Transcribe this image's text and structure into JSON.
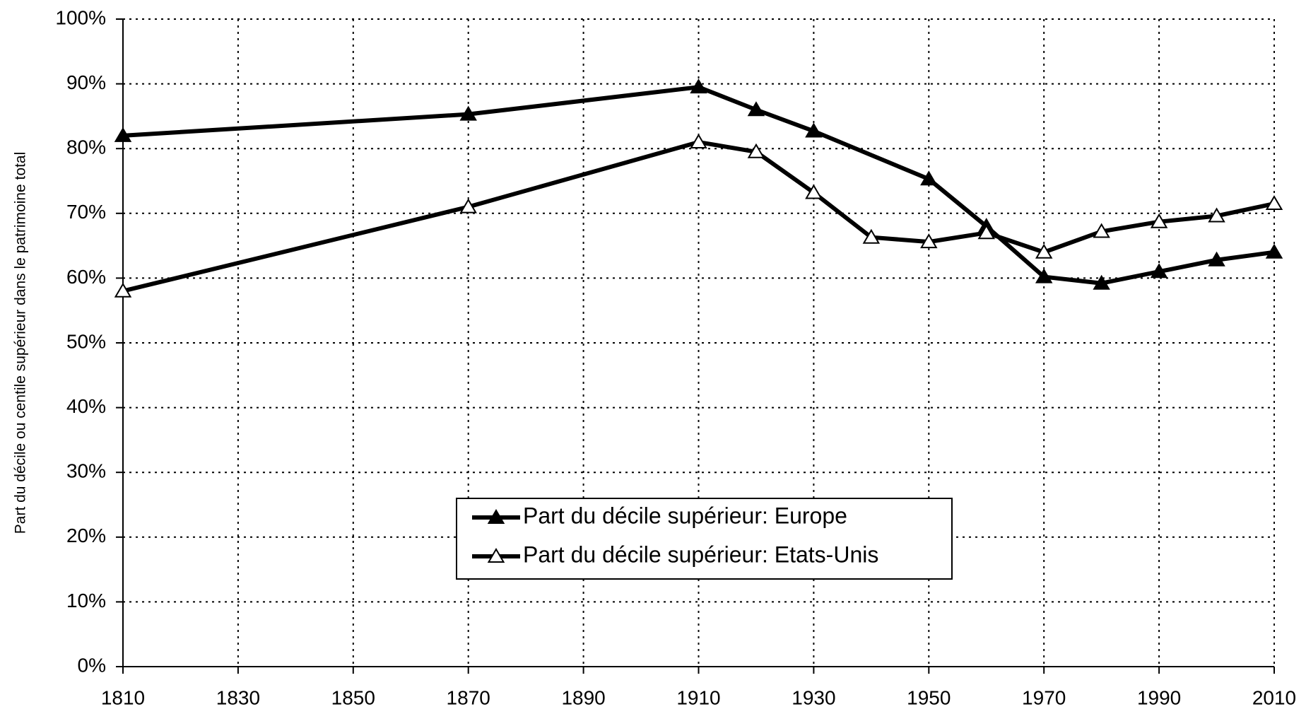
{
  "chart_data": {
    "type": "line",
    "y_label": "Part du décile ou centile supérieur dans le patrimoine total",
    "series": [
      {
        "name": "Part du décile supérieur: Europe",
        "color": "#000000",
        "marker_fill": "#000000",
        "x": [
          1810,
          1870,
          1910,
          1920,
          1930,
          1950,
          1960,
          1970,
          1980,
          1990,
          2000,
          2010
        ],
        "values": [
          82,
          85.3,
          89.5,
          86,
          82.7,
          75.3,
          68,
          60.2,
          59.2,
          61,
          62.8,
          64
        ]
      },
      {
        "name": "Part du décile supérieur: Etats-Unis",
        "color": "#000000",
        "marker_fill": "#ffffff",
        "x": [
          1810,
          1870,
          1910,
          1920,
          1930,
          1940,
          1950,
          1960,
          1970,
          1980,
          1990,
          2000,
          2010
        ],
        "values": [
          58,
          71,
          81,
          79.5,
          73.2,
          66.3,
          65.6,
          67,
          64,
          67.2,
          68.7,
          69.6,
          71.5
        ]
      }
    ],
    "xlim": [
      1810,
      2010
    ],
    "xticks": [
      1810,
      1830,
      1850,
      1870,
      1890,
      1910,
      1930,
      1950,
      1970,
      1990,
      2010
    ],
    "ylim": [
      0,
      100
    ],
    "yticks": [
      {
        "value": 0,
        "label": "0%"
      },
      {
        "value": 10,
        "label": "10%"
      },
      {
        "value": 20,
        "label": "20%"
      },
      {
        "value": 30,
        "label": "30%"
      },
      {
        "value": 40,
        "label": "40%"
      },
      {
        "value": 50,
        "label": "50%"
      },
      {
        "value": 60,
        "label": "60%"
      },
      {
        "value": 70,
        "label": "70%"
      },
      {
        "value": 80,
        "label": "80%"
      },
      {
        "value": 90,
        "label": "90%"
      },
      {
        "value": 100,
        "label": "100%"
      }
    ],
    "grid": true,
    "legend": "bottom-center"
  }
}
